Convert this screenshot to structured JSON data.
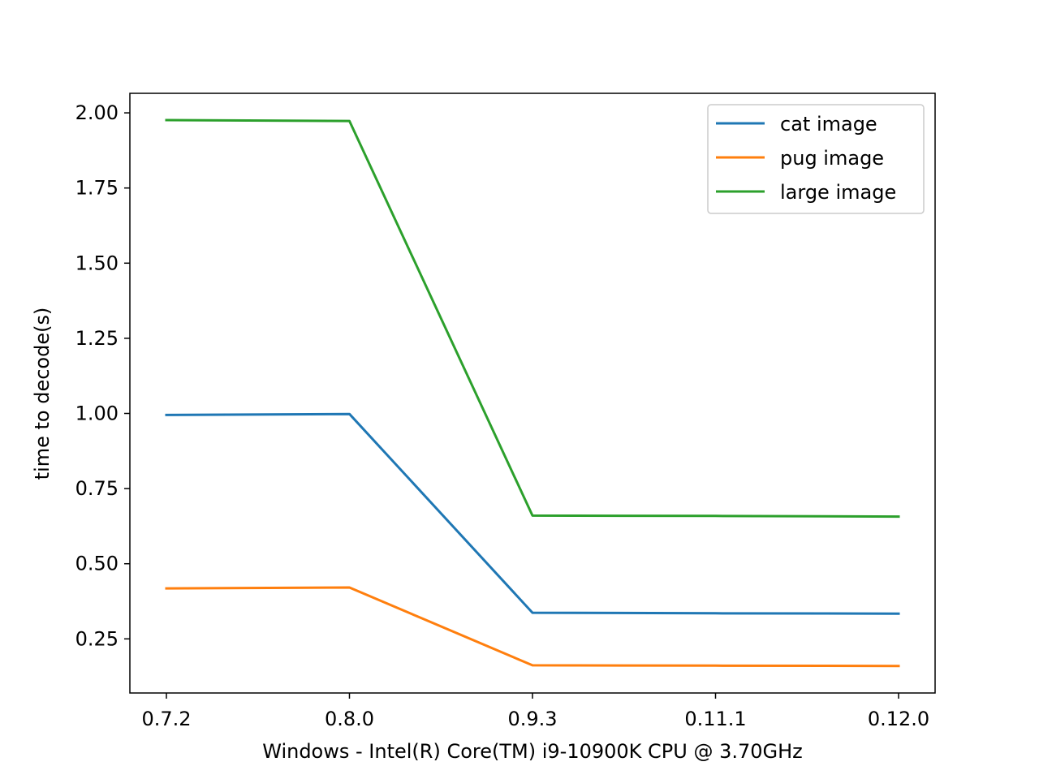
{
  "chart_data": {
    "type": "line",
    "title": "",
    "xlabel": "Windows - Intel(R) Core(TM) i9-10900K CPU @ 3.70GHz",
    "ylabel": "time to decode(s)",
    "categories": [
      "0.7.2",
      "0.8.0",
      "0.9.3",
      "0.11.1",
      "0.12.0"
    ],
    "ylim": [
      0.07,
      2.065
    ],
    "yticks": [
      0.25,
      0.5,
      0.75,
      1.0,
      1.25,
      1.5,
      1.75,
      2.0
    ],
    "ytick_labels": [
      "0.25",
      "0.50",
      "0.75",
      "1.00",
      "1.25",
      "1.50",
      "1.75",
      "2.00"
    ],
    "grid": false,
    "legend_position": "top-right",
    "series": [
      {
        "name": "cat image",
        "color": "#1f77b4",
        "values": [
          0.995,
          0.998,
          0.337,
          0.335,
          0.334
        ]
      },
      {
        "name": "pug image",
        "color": "#ff7f0e",
        "values": [
          0.418,
          0.421,
          0.162,
          0.161,
          0.16
        ]
      },
      {
        "name": "large image",
        "color": "#2ca02c",
        "values": [
          1.976,
          1.973,
          0.66,
          0.659,
          0.657
        ]
      }
    ]
  }
}
